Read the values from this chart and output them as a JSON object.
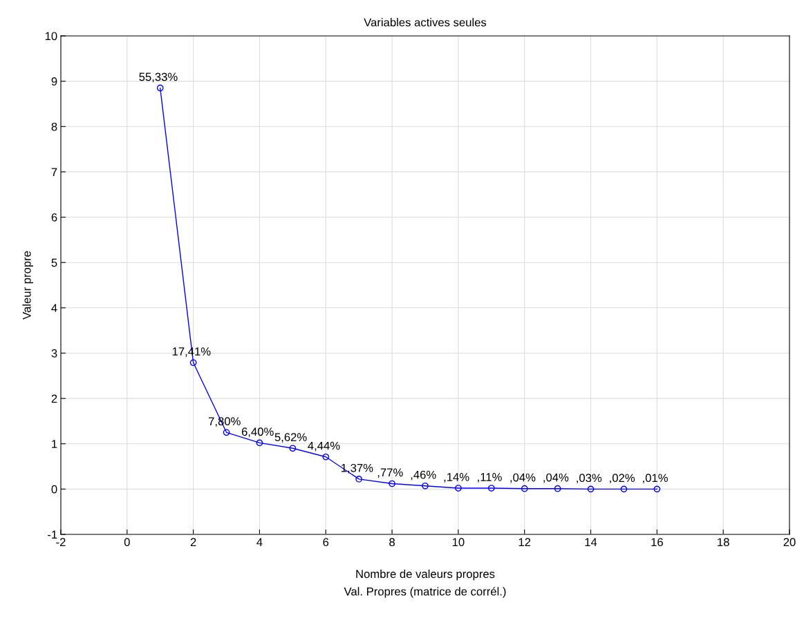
{
  "chart_data": {
    "type": "line",
    "title": "Variables actives seules",
    "xlabel": "Nombre de valeurs propres",
    "ylabel": "Valeur propre",
    "annotations": [
      "Val. Propres (matrice de corrél.)",
      {
        "text": "55,33%",
        "x": 1,
        "y": 8.85
      },
      {
        "text": "17,41%",
        "x": 2,
        "y": 2.79
      },
      {
        "text": "7,80%",
        "x": 3,
        "y": 1.25
      },
      {
        "text": "6,40%",
        "x": 4,
        "y": 1.02
      },
      {
        "text": "5,62%",
        "x": 5,
        "y": 0.9
      },
      {
        "text": "4,44%",
        "x": 6,
        "y": 0.71
      },
      {
        "text": "1,37%",
        "x": 7,
        "y": 0.22
      },
      {
        "text": ",77%",
        "x": 8,
        "y": 0.12
      },
      {
        "text": ",46%",
        "x": 9,
        "y": 0.07
      },
      {
        "text": ",14%",
        "x": 10,
        "y": 0.02
      },
      {
        "text": ",11%",
        "x": 11,
        "y": 0.02
      },
      {
        "text": ",04%",
        "x": 12,
        "y": 0.01
      },
      {
        "text": ",04%",
        "x": 13,
        "y": 0.01
      },
      {
        "text": ",03%",
        "x": 14,
        "y": 0.0
      },
      {
        "text": ",02%",
        "x": 15,
        "y": 0.0
      },
      {
        "text": ",01%",
        "x": 16,
        "y": 0.0
      }
    ],
    "x": [
      1,
      2,
      3,
      4,
      5,
      6,
      7,
      8,
      9,
      10,
      11,
      12,
      13,
      14,
      15,
      16
    ],
    "series": [
      {
        "color": "#0000ff",
        "values": [
          8.85,
          2.79,
          1.25,
          1.02,
          0.9,
          0.71,
          0.22,
          0.12,
          0.07,
          0.02,
          0.02,
          0.01,
          0.01,
          0.0,
          0.0,
          0.0
        ]
      }
    ],
    "xlim": [
      -2,
      20
    ],
    "xticks": [
      -2,
      0,
      2,
      4,
      6,
      8,
      10,
      12,
      14,
      16,
      18,
      20
    ],
    "ylim": [
      -1,
      10
    ],
    "yticks": [
      -1,
      0,
      1,
      2,
      3,
      4,
      5,
      6,
      7,
      8,
      9,
      10
    ],
    "grid": true,
    "marker": "circle",
    "line_style": "solid",
    "legend": false
  }
}
